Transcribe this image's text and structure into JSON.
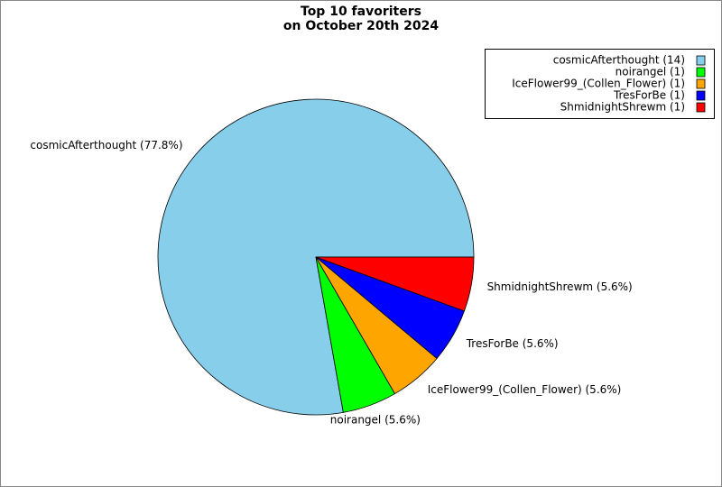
{
  "chart_data": {
    "type": "pie",
    "title": [
      "Top 10 favoriters",
      "on October 20th 2024"
    ],
    "categories": [
      "cosmicAfterthought (14)",
      "noirangel (1)",
      "IceFlower99_(Collen_Flower) (1)",
      "TresForBe (1)",
      "ShmidnightShrewm (1)"
    ],
    "values": [
      14,
      1,
      1,
      1,
      1
    ],
    "value_labels": [
      "cosmicAfterthought (77.8%)",
      "noirangel (5.6%)",
      "IceFlower99_(Collen_Flower) (5.6%)",
      "TresForBe (5.6%)",
      "ShmidnightShrewm (5.6%)"
    ],
    "colors": [
      "#87ceeb",
      "#00ff00",
      "#ffa500",
      "#0000ff",
      "#ff0000"
    ],
    "legend": "upper right"
  }
}
